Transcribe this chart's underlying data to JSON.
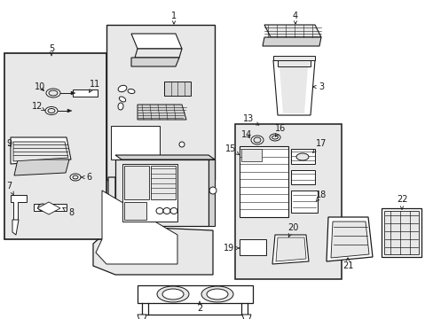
{
  "bg_color": "#ffffff",
  "fig_width": 4.89,
  "fig_height": 3.6,
  "dpi": 100,
  "lc": "#1a1a1a",
  "fill_gray": "#d4d4d4",
  "fill_light": "#e8e8e8",
  "fill_white": "#ffffff"
}
